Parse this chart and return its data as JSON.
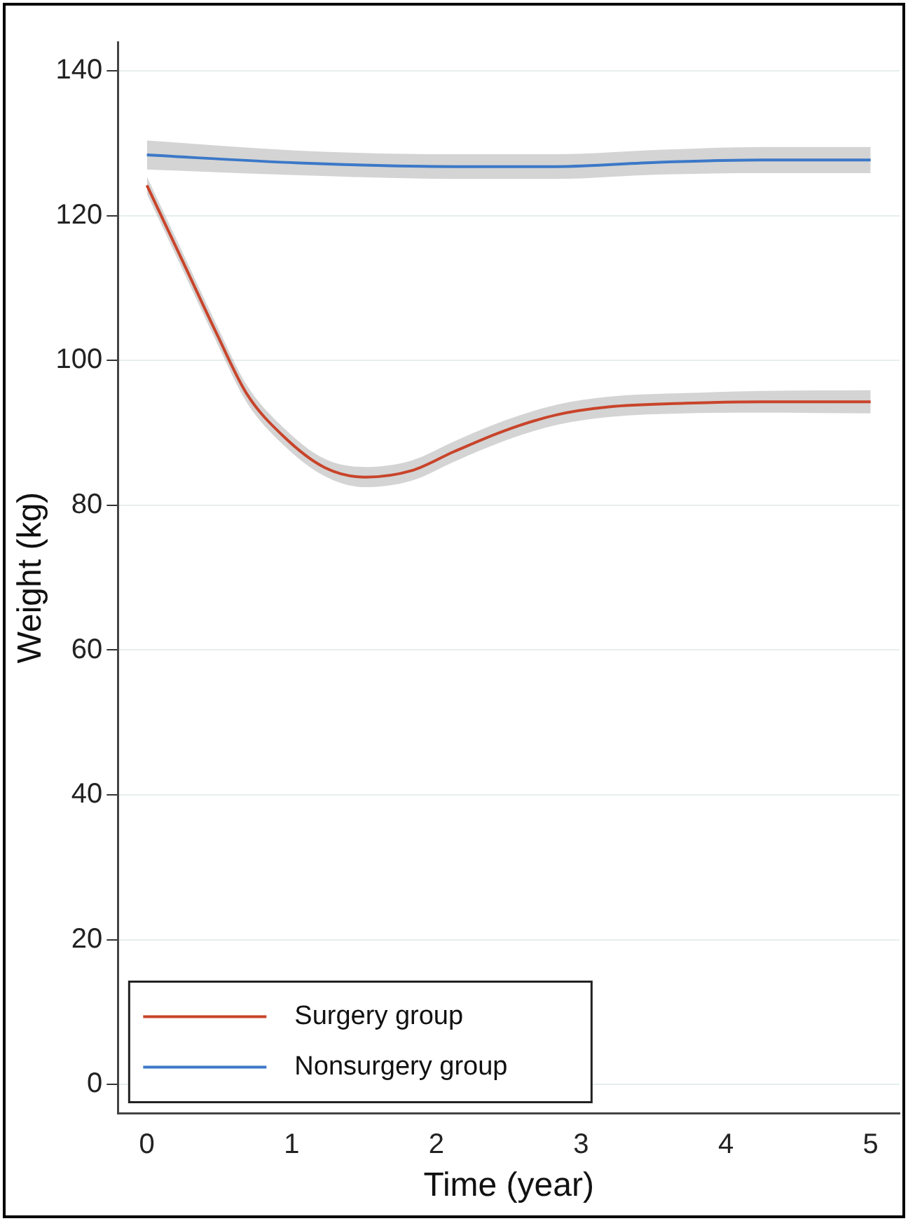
{
  "chart_data": {
    "type": "line",
    "xlabel": "Time (year)",
    "ylabel": "Weight (kg)",
    "xlim": [
      -0.2,
      5.2
    ],
    "xticks": [
      0,
      1,
      2,
      3,
      4,
      5
    ],
    "ylim": [
      -4,
      144
    ],
    "yticks": [
      0,
      20,
      40,
      60,
      80,
      100,
      120,
      140
    ],
    "grid": "y",
    "legend": "bottom left",
    "marker": "none",
    "line_style": "solid",
    "series": [
      {
        "name": "Surgery group",
        "color": "#c8442a",
        "x": [
          0,
          0.25,
          0.48,
          0.69,
          0.94,
          1.23,
          1.51,
          1.83,
          2.12,
          2.47,
          2.83,
          3.19,
          3.72,
          4.25,
          5
        ],
        "values": [
          124.2,
          113.6,
          103.8,
          95.4,
          89.6,
          85.2,
          83.9,
          84.8,
          87.4,
          90.3,
          92.5,
          93.6,
          94.1,
          94.3,
          94.3
        ],
        "lower": [
          123,
          112.4,
          102.6,
          94.2,
          88.4,
          84,
          82.5,
          83.4,
          86,
          88.9,
          91.1,
          92.2,
          92.7,
          92.8,
          92.7
        ],
        "upper": [
          125.4,
          114.8,
          105,
          96.6,
          90.8,
          86.4,
          85.3,
          86.2,
          88.8,
          91.7,
          93.9,
          95,
          95.5,
          95.8,
          95.9
        ]
      },
      {
        "name": "Nonsurgery group",
        "color": "#3b78c8",
        "x": [
          0,
          1.05,
          2.12,
          2.83,
          3.54,
          4.25,
          5
        ],
        "values": [
          128.4,
          127.3,
          126.8,
          126.8,
          127.4,
          127.7,
          127.7
        ],
        "lower": [
          126.4,
          125.6,
          125.1,
          125.1,
          125.7,
          125.9,
          125.9
        ],
        "upper": [
          130.4,
          129,
          128.5,
          128.5,
          129.1,
          129.5,
          129.5
        ]
      }
    ]
  }
}
